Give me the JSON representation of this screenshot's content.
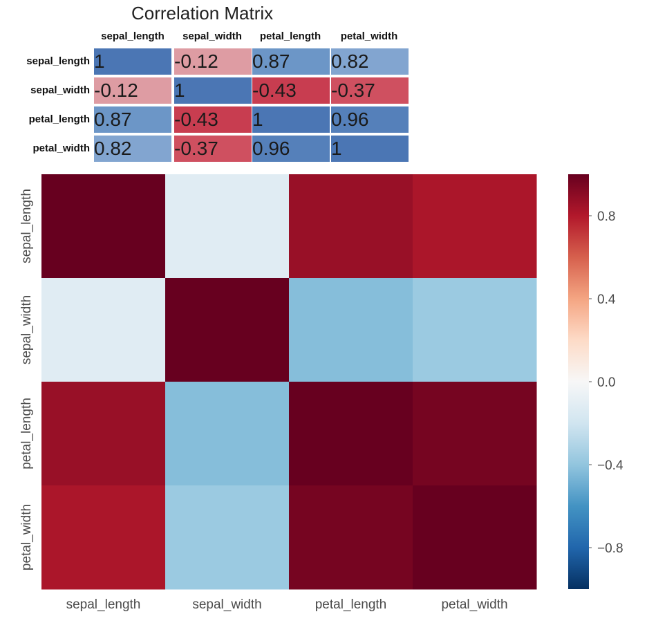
{
  "table": {
    "title": "Correlation Matrix",
    "columns": [
      "sepal_length",
      "sepal_width",
      "petal_length",
      "petal_width"
    ],
    "rows": [
      {
        "label": "sepal_length",
        "display": [
          "1",
          "-0.12",
          "0.87",
          "0.82"
        ]
      },
      {
        "label": "sepal_width",
        "display": [
          "-0.12",
          "1",
          "-0.43",
          "-0.37"
        ]
      },
      {
        "label": "petal_length",
        "display": [
          "0.87",
          "-0.43",
          "1",
          "0.96"
        ]
      },
      {
        "label": "petal_width",
        "display": [
          "0.82",
          "-0.37",
          "0.96",
          "1"
        ]
      }
    ]
  },
  "chart_data": {
    "type": "heatmap",
    "x": [
      "sepal_length",
      "sepal_width",
      "petal_length",
      "petal_width"
    ],
    "y": [
      "sepal_length",
      "sepal_width",
      "petal_length",
      "petal_width"
    ],
    "values": [
      [
        1.0,
        -0.12,
        0.87,
        0.82
      ],
      [
        -0.12,
        1.0,
        -0.43,
        -0.37
      ],
      [
        0.87,
        -0.43,
        1.0,
        0.96
      ],
      [
        0.82,
        -0.37,
        0.96,
        1.0
      ]
    ],
    "colorbar": {
      "range": [
        -1,
        1
      ],
      "ticks": [
        0.8,
        0.4,
        0.0,
        -0.4,
        -0.8
      ],
      "tick_labels": [
        "0.8",
        "0.4",
        "0.0",
        "−0.4",
        "−0.8"
      ],
      "colormap": "RdBu_r"
    }
  }
}
